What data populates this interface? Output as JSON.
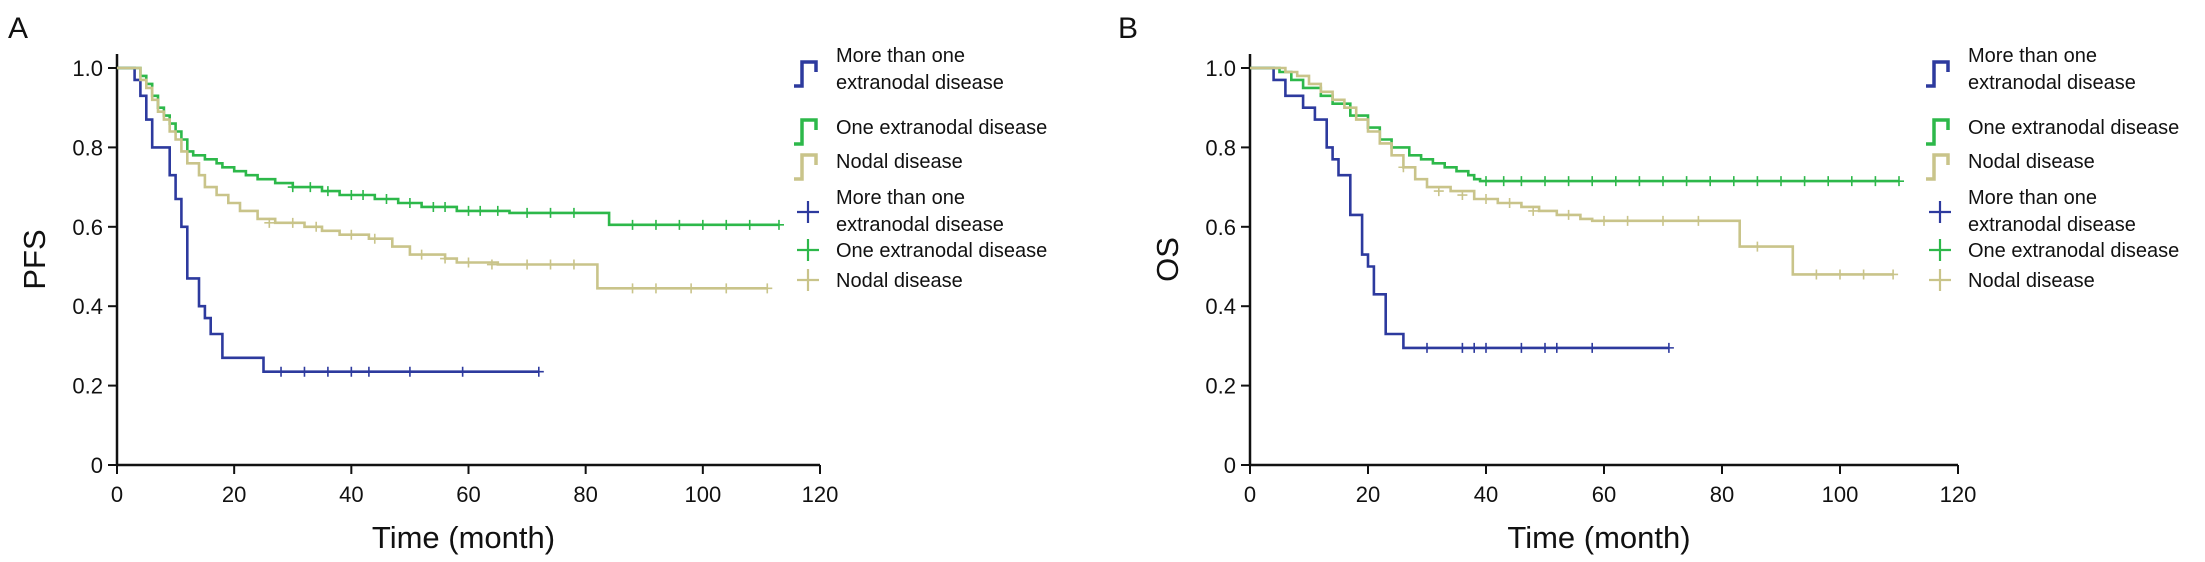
{
  "colors": {
    "more_than_one": "#2d3a9e",
    "one": "#2db84a",
    "nodal": "#c9c48a",
    "axis": "#111111"
  },
  "chart_data": [
    {
      "type": "line",
      "panel_label": "A",
      "xlabel": "Time (month)",
      "ylabel": "PFS",
      "xlim": [
        0,
        120
      ],
      "ylim": [
        0,
        1.0
      ],
      "x_ticks": [
        "0",
        "20",
        "40",
        "60",
        "80",
        "100",
        "120"
      ],
      "y_ticks": [
        "0",
        "0.2",
        "0.4",
        "0.6",
        "0.8",
        "1.0"
      ],
      "legend_placement": "right",
      "legend_lines": [
        {
          "label": "More than one extranodal disease",
          "series": 0
        },
        {
          "label": "One extranodal disease",
          "series": 1
        },
        {
          "label": "Nodal disease",
          "series": 2
        }
      ],
      "legend_censor": [
        {
          "label": "More than one extranodal disease",
          "series": 0
        },
        {
          "label": "One extranodal disease",
          "series": 1
        },
        {
          "label": "Nodal disease",
          "series": 2
        }
      ],
      "series": [
        {
          "name": "More than one extranodal disease",
          "color_key": "more_than_one",
          "steps": [
            [
              0,
              1.0
            ],
            [
              3,
              1.0
            ],
            [
              3,
              0.97
            ],
            [
              4,
              0.93
            ],
            [
              5,
              0.87
            ],
            [
              6,
              0.8
            ],
            [
              9,
              0.8
            ],
            [
              9,
              0.73
            ],
            [
              10,
              0.67
            ],
            [
              11,
              0.6
            ],
            [
              12,
              0.53
            ],
            [
              12,
              0.47
            ],
            [
              14,
              0.47
            ],
            [
              14,
              0.4
            ],
            [
              15,
              0.37
            ],
            [
              16,
              0.33
            ],
            [
              18,
              0.33
            ],
            [
              18,
              0.27
            ],
            [
              25,
              0.27
            ],
            [
              25,
              0.235
            ],
            [
              72,
              0.235
            ]
          ],
          "censors": [
            [
              28,
              0.235
            ],
            [
              32,
              0.235
            ],
            [
              36,
              0.235
            ],
            [
              40,
              0.235
            ],
            [
              43,
              0.235
            ],
            [
              50,
              0.235
            ],
            [
              59,
              0.235
            ],
            [
              72,
              0.235
            ]
          ]
        },
        {
          "name": "One extranodal disease",
          "color_key": "one",
          "steps": [
            [
              0,
              1.0
            ],
            [
              3,
              1.0
            ],
            [
              4,
              0.98
            ],
            [
              5,
              0.96
            ],
            [
              6,
              0.93
            ],
            [
              7,
              0.9
            ],
            [
              8,
              0.88
            ],
            [
              9,
              0.86
            ],
            [
              10,
              0.84
            ],
            [
              11,
              0.82
            ],
            [
              12,
              0.79
            ],
            [
              13,
              0.78
            ],
            [
              15,
              0.77
            ],
            [
              17,
              0.76
            ],
            [
              18,
              0.75
            ],
            [
              20,
              0.74
            ],
            [
              22,
              0.73
            ],
            [
              24,
              0.72
            ],
            [
              27,
              0.71
            ],
            [
              30,
              0.7
            ],
            [
              35,
              0.69
            ],
            [
              38,
              0.68
            ],
            [
              44,
              0.67
            ],
            [
              48,
              0.66
            ],
            [
              52,
              0.65
            ],
            [
              58,
              0.64
            ],
            [
              67,
              0.635
            ],
            [
              82,
              0.635
            ],
            [
              84,
              0.63
            ],
            [
              84,
              0.605
            ],
            [
              113,
              0.605
            ]
          ],
          "censors": [
            [
              30,
              0.7
            ],
            [
              33,
              0.7
            ],
            [
              36,
              0.69
            ],
            [
              40,
              0.68
            ],
            [
              42,
              0.68
            ],
            [
              46,
              0.67
            ],
            [
              50,
              0.66
            ],
            [
              54,
              0.65
            ],
            [
              56,
              0.65
            ],
            [
              60,
              0.64
            ],
            [
              62,
              0.64
            ],
            [
              65,
              0.64
            ],
            [
              70,
              0.635
            ],
            [
              74,
              0.635
            ],
            [
              78,
              0.635
            ],
            [
              88,
              0.605
            ],
            [
              92,
              0.605
            ],
            [
              96,
              0.605
            ],
            [
              100,
              0.605
            ],
            [
              104,
              0.605
            ],
            [
              108,
              0.605
            ],
            [
              113,
              0.605
            ]
          ]
        },
        {
          "name": "Nodal disease",
          "color_key": "nodal",
          "steps": [
            [
              0,
              1.0
            ],
            [
              3,
              1.0
            ],
            [
              4,
              0.97
            ],
            [
              5,
              0.95
            ],
            [
              6,
              0.92
            ],
            [
              7,
              0.89
            ],
            [
              8,
              0.87
            ],
            [
              9,
              0.84
            ],
            [
              10,
              0.82
            ],
            [
              11,
              0.79
            ],
            [
              12,
              0.76
            ],
            [
              14,
              0.73
            ],
            [
              15,
              0.7
            ],
            [
              17,
              0.68
            ],
            [
              19,
              0.66
            ],
            [
              21,
              0.64
            ],
            [
              24,
              0.62
            ],
            [
              27,
              0.61
            ],
            [
              32,
              0.6
            ],
            [
              35,
              0.59
            ],
            [
              38,
              0.58
            ],
            [
              43,
              0.57
            ],
            [
              47,
              0.55
            ],
            [
              50,
              0.53
            ],
            [
              56,
              0.52
            ],
            [
              58,
              0.51
            ],
            [
              65,
              0.505
            ],
            [
              82,
              0.505
            ],
            [
              82,
              0.445
            ],
            [
              111,
              0.445
            ]
          ],
          "censors": [
            [
              26,
              0.61
            ],
            [
              30,
              0.61
            ],
            [
              34,
              0.6
            ],
            [
              40,
              0.58
            ],
            [
              44,
              0.57
            ],
            [
              52,
              0.53
            ],
            [
              56,
              0.52
            ],
            [
              60,
              0.51
            ],
            [
              64,
              0.505
            ],
            [
              70,
              0.505
            ],
            [
              74,
              0.505
            ],
            [
              78,
              0.505
            ],
            [
              88,
              0.445
            ],
            [
              92,
              0.445
            ],
            [
              98,
              0.445
            ],
            [
              104,
              0.445
            ],
            [
              111,
              0.445
            ]
          ]
        }
      ]
    },
    {
      "type": "line",
      "panel_label": "B",
      "xlabel": "Time (month)",
      "ylabel": "OS",
      "xlim": [
        0,
        120
      ],
      "ylim": [
        0,
        1.0
      ],
      "x_ticks": [
        "0",
        "20",
        "40",
        "60",
        "80",
        "100",
        "120"
      ],
      "y_ticks": [
        "0",
        "0.2",
        "0.4",
        "0.6",
        "0.8",
        "1.0"
      ],
      "legend_placement": "right",
      "legend_lines": [
        {
          "label": "More than one extranodal disease",
          "series": 0
        },
        {
          "label": "One extranodal disease",
          "series": 1
        },
        {
          "label": "Nodal disease",
          "series": 2
        }
      ],
      "legend_censor": [
        {
          "label": "More than one extranodal disease",
          "series": 0
        },
        {
          "label": "One extranodal disease",
          "series": 1
        },
        {
          "label": "Nodal disease",
          "series": 2
        }
      ],
      "series": [
        {
          "name": "More than one extranodal disease",
          "color_key": "more_than_one",
          "steps": [
            [
              0,
              1.0
            ],
            [
              4,
              1.0
            ],
            [
              4,
              0.97
            ],
            [
              6,
              0.93
            ],
            [
              9,
              0.9
            ],
            [
              11,
              0.87
            ],
            [
              13,
              0.8
            ],
            [
              14,
              0.77
            ],
            [
              15,
              0.73
            ],
            [
              17,
              0.63
            ],
            [
              19,
              0.63
            ],
            [
              19,
              0.53
            ],
            [
              20,
              0.5
            ],
            [
              21,
              0.43
            ],
            [
              23,
              0.43
            ],
            [
              23,
              0.33
            ],
            [
              26,
              0.33
            ],
            [
              26,
              0.295
            ],
            [
              71,
              0.295
            ]
          ],
          "censors": [
            [
              30,
              0.295
            ],
            [
              36,
              0.295
            ],
            [
              38,
              0.295
            ],
            [
              40,
              0.295
            ],
            [
              46,
              0.295
            ],
            [
              50,
              0.295
            ],
            [
              52,
              0.295
            ],
            [
              58,
              0.295
            ],
            [
              71,
              0.295
            ]
          ]
        },
        {
          "name": "One extranodal disease",
          "color_key": "one",
          "steps": [
            [
              0,
              1.0
            ],
            [
              4,
              1.0
            ],
            [
              5,
              0.99
            ],
            [
              7,
              0.97
            ],
            [
              9,
              0.95
            ],
            [
              12,
              0.93
            ],
            [
              14,
              0.91
            ],
            [
              17,
              0.88
            ],
            [
              20,
              0.85
            ],
            [
              22,
              0.82
            ],
            [
              24,
              0.8
            ],
            [
              27,
              0.78
            ],
            [
              29,
              0.77
            ],
            [
              31,
              0.76
            ],
            [
              33,
              0.75
            ],
            [
              35,
              0.74
            ],
            [
              37,
              0.73
            ],
            [
              38,
              0.72
            ],
            [
              39,
              0.715
            ],
            [
              110,
              0.715
            ]
          ],
          "censors": [
            [
              40,
              0.715
            ],
            [
              43,
              0.715
            ],
            [
              46,
              0.715
            ],
            [
              50,
              0.715
            ],
            [
              54,
              0.715
            ],
            [
              58,
              0.715
            ],
            [
              62,
              0.715
            ],
            [
              66,
              0.715
            ],
            [
              70,
              0.715
            ],
            [
              74,
              0.715
            ],
            [
              78,
              0.715
            ],
            [
              82,
              0.715
            ],
            [
              86,
              0.715
            ],
            [
              90,
              0.715
            ],
            [
              94,
              0.715
            ],
            [
              98,
              0.715
            ],
            [
              102,
              0.715
            ],
            [
              106,
              0.715
            ],
            [
              110,
              0.715
            ]
          ]
        },
        {
          "name": "Nodal disease",
          "color_key": "nodal",
          "steps": [
            [
              0,
              1.0
            ],
            [
              4,
              1.0
            ],
            [
              6,
              0.99
            ],
            [
              8,
              0.98
            ],
            [
              10,
              0.96
            ],
            [
              12,
              0.94
            ],
            [
              14,
              0.92
            ],
            [
              16,
              0.9
            ],
            [
              18,
              0.87
            ],
            [
              20,
              0.84
            ],
            [
              22,
              0.81
            ],
            [
              24,
              0.78
            ],
            [
              26,
              0.75
            ],
            [
              28,
              0.72
            ],
            [
              30,
              0.7
            ],
            [
              34,
              0.69
            ],
            [
              38,
              0.67
            ],
            [
              42,
              0.66
            ],
            [
              46,
              0.65
            ],
            [
              49,
              0.64
            ],
            [
              52,
              0.63
            ],
            [
              56,
              0.62
            ],
            [
              58,
              0.615
            ],
            [
              83,
              0.615
            ],
            [
              83,
              0.55
            ],
            [
              92,
              0.55
            ],
            [
              92,
              0.48
            ],
            [
              109,
              0.48
            ]
          ],
          "censors": [
            [
              26,
              0.75
            ],
            [
              32,
              0.69
            ],
            [
              36,
              0.68
            ],
            [
              40,
              0.67
            ],
            [
              44,
              0.66
            ],
            [
              48,
              0.64
            ],
            [
              54,
              0.63
            ],
            [
              60,
              0.615
            ],
            [
              64,
              0.615
            ],
            [
              70,
              0.615
            ],
            [
              76,
              0.615
            ],
            [
              86,
              0.55
            ],
            [
              96,
              0.48
            ],
            [
              100,
              0.48
            ],
            [
              104,
              0.48
            ],
            [
              109,
              0.48
            ]
          ]
        }
      ]
    }
  ]
}
